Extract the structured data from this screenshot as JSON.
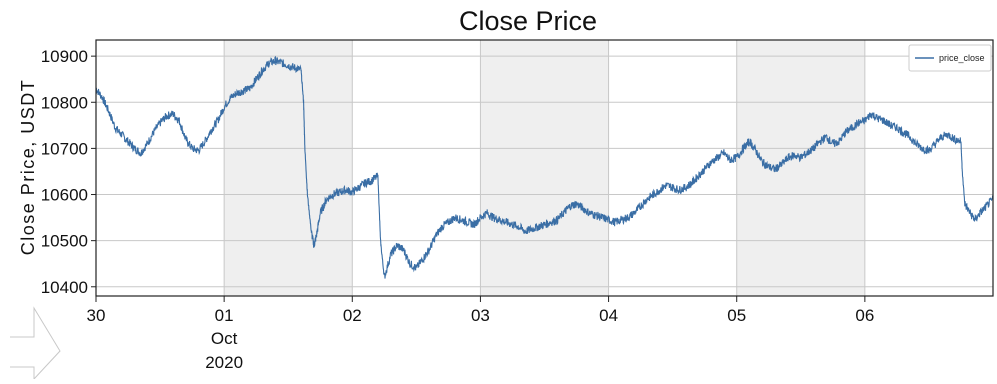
{
  "chart_data": {
    "type": "line",
    "title": "Close Price",
    "xlabel": "",
    "ylabel": "Close Price, USDT",
    "ylim": [
      10380,
      10935
    ],
    "yticks": [
      10400,
      10500,
      10600,
      10700,
      10800,
      10900
    ],
    "ytick_labels": [
      "10400",
      "10500",
      "10600",
      "10700",
      "10800",
      "10900"
    ],
    "xlim_days": [
      0,
      7
    ],
    "xticks": [
      {
        "label": "30",
        "sub": [
          "",
          ""
        ]
      },
      {
        "label": "01",
        "sub": [
          "Oct",
          "2020"
        ]
      },
      {
        "label": "02",
        "sub": [
          "",
          ""
        ]
      },
      {
        "label": "03",
        "sub": [
          "",
          ""
        ]
      },
      {
        "label": "04",
        "sub": [
          "",
          ""
        ]
      },
      {
        "label": "05",
        "sub": [
          "",
          ""
        ]
      },
      {
        "label": "06",
        "sub": [
          "",
          ""
        ]
      }
    ],
    "shaded_days": [
      [
        1,
        2
      ],
      [
        3,
        4
      ],
      [
        5,
        6
      ]
    ],
    "grid": true,
    "legend_position": "top-right",
    "colors": {
      "series": "#3a6ea5",
      "shade": "#efefef",
      "grid": "#c8c8c8"
    },
    "series": [
      {
        "name": "price_close",
        "x": [
          0.0,
          0.05,
          0.1,
          0.15,
          0.2,
          0.25,
          0.3,
          0.35,
          0.4,
          0.45,
          0.5,
          0.55,
          0.6,
          0.65,
          0.7,
          0.75,
          0.8,
          0.85,
          0.9,
          0.95,
          1.0,
          1.05,
          1.1,
          1.15,
          1.2,
          1.25,
          1.3,
          1.35,
          1.4,
          1.45,
          1.5,
          1.55,
          1.6,
          1.62,
          1.63,
          1.65,
          1.68,
          1.7,
          1.72,
          1.75,
          1.8,
          1.85,
          1.9,
          1.95,
          2.0,
          2.05,
          2.1,
          2.15,
          2.2,
          2.22,
          2.25,
          2.3,
          2.35,
          2.4,
          2.45,
          2.5,
          2.55,
          2.6,
          2.65,
          2.7,
          2.75,
          2.8,
          2.85,
          2.9,
          2.95,
          3.0,
          3.05,
          3.1,
          3.15,
          3.2,
          3.25,
          3.3,
          3.35,
          3.4,
          3.45,
          3.5,
          3.55,
          3.6,
          3.65,
          3.7,
          3.75,
          3.8,
          3.85,
          3.9,
          3.95,
          4.0,
          4.05,
          4.1,
          4.15,
          4.2,
          4.25,
          4.3,
          4.35,
          4.4,
          4.45,
          4.5,
          4.55,
          4.6,
          4.65,
          4.7,
          4.75,
          4.8,
          4.85,
          4.9,
          4.95,
          5.0,
          5.05,
          5.1,
          5.15,
          5.2,
          5.25,
          5.3,
          5.35,
          5.4,
          5.45,
          5.5,
          5.55,
          5.6,
          5.65,
          5.7,
          5.75,
          5.8,
          5.85,
          5.9,
          5.95,
          6.0,
          6.05,
          6.1,
          6.15,
          6.2,
          6.25,
          6.3,
          6.35,
          6.4,
          6.45,
          6.5,
          6.55,
          6.6,
          6.65,
          6.7,
          6.75,
          6.76,
          6.78,
          6.82,
          6.86,
          6.9,
          6.95,
          7.0
        ],
        "values": [
          10830,
          10810,
          10780,
          10745,
          10730,
          10715,
          10700,
          10690,
          10710,
          10735,
          10755,
          10770,
          10775,
          10760,
          10720,
          10700,
          10695,
          10715,
          10740,
          10760,
          10790,
          10810,
          10820,
          10825,
          10830,
          10850,
          10870,
          10885,
          10890,
          10885,
          10880,
          10875,
          10870,
          10800,
          10700,
          10600,
          10520,
          10490,
          10510,
          10560,
          10590,
          10600,
          10605,
          10610,
          10605,
          10615,
          10625,
          10630,
          10640,
          10500,
          10420,
          10470,
          10490,
          10480,
          10450,
          10440,
          10460,
          10480,
          10510,
          10530,
          10540,
          10550,
          10545,
          10540,
          10535,
          10550,
          10560,
          10550,
          10545,
          10540,
          10535,
          10530,
          10520,
          10525,
          10530,
          10535,
          10540,
          10545,
          10560,
          10575,
          10580,
          10570,
          10560,
          10555,
          10550,
          10545,
          10540,
          10545,
          10550,
          10560,
          10575,
          10590,
          10600,
          10610,
          10620,
          10615,
          10610,
          10615,
          10625,
          10640,
          10655,
          10670,
          10680,
          10690,
          10675,
          10680,
          10700,
          10715,
          10695,
          10670,
          10660,
          10655,
          10665,
          10680,
          10685,
          10680,
          10690,
          10700,
          10715,
          10725,
          10710,
          10715,
          10735,
          10745,
          10755,
          10760,
          10775,
          10765,
          10760,
          10750,
          10745,
          10735,
          10725,
          10710,
          10700,
          10695,
          10710,
          10725,
          10730,
          10720,
          10715,
          10650,
          10580,
          10560,
          10545,
          10560,
          10575,
          10590
        ]
      }
    ]
  }
}
